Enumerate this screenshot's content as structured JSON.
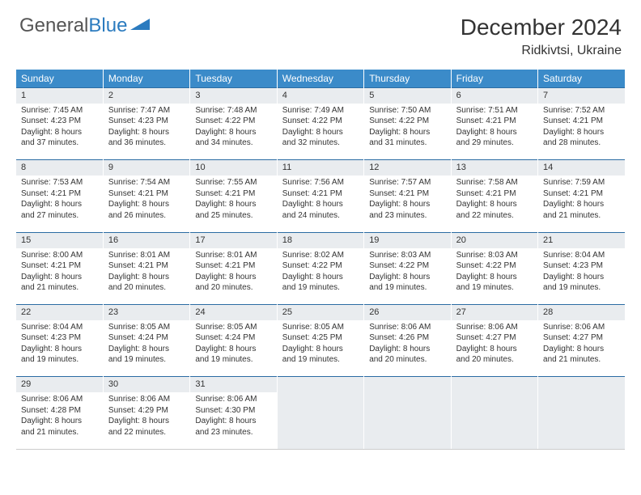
{
  "logo": {
    "part1": "General",
    "part2": "Blue"
  },
  "title": "December 2024",
  "location": "Ridkivtsi, Ukraine",
  "colors": {
    "header_bg": "#3b8bc9",
    "header_text": "#ffffff",
    "daynum_bg": "#e9ecef",
    "border": "#2b6ca3",
    "logo_gray": "#555555",
    "logo_blue": "#2b7bbf"
  },
  "weekdays": [
    "Sunday",
    "Monday",
    "Tuesday",
    "Wednesday",
    "Thursday",
    "Friday",
    "Saturday"
  ],
  "weeks": [
    [
      {
        "n": "1",
        "sr": "7:45 AM",
        "ss": "4:23 PM",
        "dh": "8",
        "dm": "37"
      },
      {
        "n": "2",
        "sr": "7:47 AM",
        "ss": "4:23 PM",
        "dh": "8",
        "dm": "36"
      },
      {
        "n": "3",
        "sr": "7:48 AM",
        "ss": "4:22 PM",
        "dh": "8",
        "dm": "34"
      },
      {
        "n": "4",
        "sr": "7:49 AM",
        "ss": "4:22 PM",
        "dh": "8",
        "dm": "32"
      },
      {
        "n": "5",
        "sr": "7:50 AM",
        "ss": "4:22 PM",
        "dh": "8",
        "dm": "31"
      },
      {
        "n": "6",
        "sr": "7:51 AM",
        "ss": "4:21 PM",
        "dh": "8",
        "dm": "29"
      },
      {
        "n": "7",
        "sr": "7:52 AM",
        "ss": "4:21 PM",
        "dh": "8",
        "dm": "28"
      }
    ],
    [
      {
        "n": "8",
        "sr": "7:53 AM",
        "ss": "4:21 PM",
        "dh": "8",
        "dm": "27"
      },
      {
        "n": "9",
        "sr": "7:54 AM",
        "ss": "4:21 PM",
        "dh": "8",
        "dm": "26"
      },
      {
        "n": "10",
        "sr": "7:55 AM",
        "ss": "4:21 PM",
        "dh": "8",
        "dm": "25"
      },
      {
        "n": "11",
        "sr": "7:56 AM",
        "ss": "4:21 PM",
        "dh": "8",
        "dm": "24"
      },
      {
        "n": "12",
        "sr": "7:57 AM",
        "ss": "4:21 PM",
        "dh": "8",
        "dm": "23"
      },
      {
        "n": "13",
        "sr": "7:58 AM",
        "ss": "4:21 PM",
        "dh": "8",
        "dm": "22"
      },
      {
        "n": "14",
        "sr": "7:59 AM",
        "ss": "4:21 PM",
        "dh": "8",
        "dm": "21"
      }
    ],
    [
      {
        "n": "15",
        "sr": "8:00 AM",
        "ss": "4:21 PM",
        "dh": "8",
        "dm": "21"
      },
      {
        "n": "16",
        "sr": "8:01 AM",
        "ss": "4:21 PM",
        "dh": "8",
        "dm": "20"
      },
      {
        "n": "17",
        "sr": "8:01 AM",
        "ss": "4:21 PM",
        "dh": "8",
        "dm": "20"
      },
      {
        "n": "18",
        "sr": "8:02 AM",
        "ss": "4:22 PM",
        "dh": "8",
        "dm": "19"
      },
      {
        "n": "19",
        "sr": "8:03 AM",
        "ss": "4:22 PM",
        "dh": "8",
        "dm": "19"
      },
      {
        "n": "20",
        "sr": "8:03 AM",
        "ss": "4:22 PM",
        "dh": "8",
        "dm": "19"
      },
      {
        "n": "21",
        "sr": "8:04 AM",
        "ss": "4:23 PM",
        "dh": "8",
        "dm": "19"
      }
    ],
    [
      {
        "n": "22",
        "sr": "8:04 AM",
        "ss": "4:23 PM",
        "dh": "8",
        "dm": "19"
      },
      {
        "n": "23",
        "sr": "8:05 AM",
        "ss": "4:24 PM",
        "dh": "8",
        "dm": "19"
      },
      {
        "n": "24",
        "sr": "8:05 AM",
        "ss": "4:24 PM",
        "dh": "8",
        "dm": "19"
      },
      {
        "n": "25",
        "sr": "8:05 AM",
        "ss": "4:25 PM",
        "dh": "8",
        "dm": "19"
      },
      {
        "n": "26",
        "sr": "8:06 AM",
        "ss": "4:26 PM",
        "dh": "8",
        "dm": "20"
      },
      {
        "n": "27",
        "sr": "8:06 AM",
        "ss": "4:27 PM",
        "dh": "8",
        "dm": "20"
      },
      {
        "n": "28",
        "sr": "8:06 AM",
        "ss": "4:27 PM",
        "dh": "8",
        "dm": "21"
      }
    ],
    [
      {
        "n": "29",
        "sr": "8:06 AM",
        "ss": "4:28 PM",
        "dh": "8",
        "dm": "21"
      },
      {
        "n": "30",
        "sr": "8:06 AM",
        "ss": "4:29 PM",
        "dh": "8",
        "dm": "22"
      },
      {
        "n": "31",
        "sr": "8:06 AM",
        "ss": "4:30 PM",
        "dh": "8",
        "dm": "23"
      },
      null,
      null,
      null,
      null
    ]
  ],
  "labels": {
    "sunrise": "Sunrise:",
    "sunset": "Sunset:",
    "daylight_pre": "Daylight:",
    "hours": "hours",
    "and": "and",
    "minutes": "minutes."
  }
}
